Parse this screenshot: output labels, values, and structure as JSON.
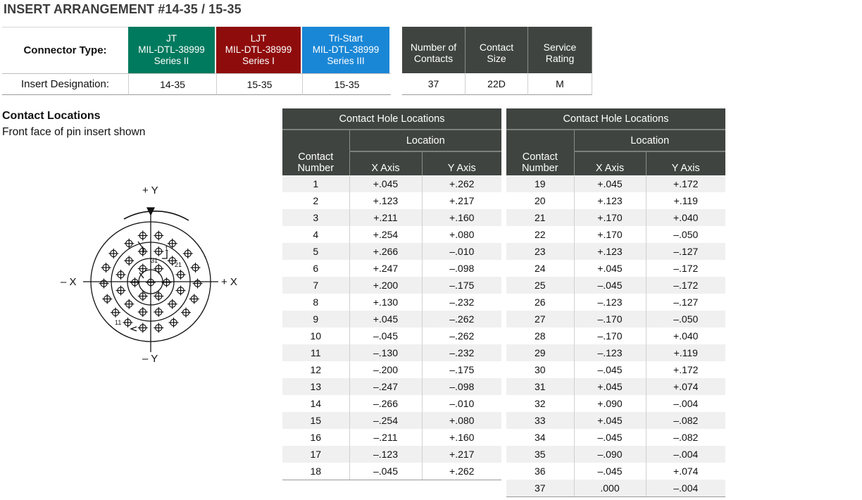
{
  "title": "INSERT ARRANGEMENT #14-35 / 15-35",
  "connector": {
    "type_label": "Connector Type:",
    "designation_label": "Insert Designation:",
    "series": [
      {
        "name": "JT",
        "spec": "MIL-DTL-38999",
        "series": "Series II",
        "color": "#007a5e",
        "designation": "14-35"
      },
      {
        "name": "LJT",
        "spec": "MIL-DTL-38999",
        "series": "Series I",
        "color": "#8f0c0c",
        "designation": "15-35"
      },
      {
        "name": "Tri-Start",
        "spec": "MIL-DTL-38999",
        "series": "Series III",
        "color": "#1a87d6",
        "designation": "15-35"
      }
    ]
  },
  "specs": {
    "headers": [
      [
        "Number of",
        "Contacts"
      ],
      [
        "Contact",
        "Size"
      ],
      [
        "Service",
        "Rating"
      ]
    ],
    "values": [
      "37",
      "22D",
      "M"
    ]
  },
  "contact_locations": {
    "title": "Contact Locations",
    "subtitle": "Front face of pin insert shown"
  },
  "diagram": {
    "plus_y": "+ Y",
    "minus_y": "– Y",
    "minus_x": "– X",
    "plus_x": "+ X",
    "label_1": "1",
    "label_21": "21",
    "label_31": "31",
    "label_11": "11"
  },
  "tables": {
    "title": "Contact Hole Locations",
    "location": "Location",
    "contact_number": [
      "Contact",
      "Number"
    ],
    "x_axis": "X Axis",
    "y_axis": "Y Axis",
    "left_rows": [
      [
        "1",
        "+.045",
        "+.262"
      ],
      [
        "2",
        "+.123",
        "+.217"
      ],
      [
        "3",
        "+.211",
        "+.160"
      ],
      [
        "4",
        "+.254",
        "+.080"
      ],
      [
        "5",
        "+.266",
        "–.010"
      ],
      [
        "6",
        "+.247",
        "–.098"
      ],
      [
        "7",
        "+.200",
        "–.175"
      ],
      [
        "8",
        "+.130",
        "–.232"
      ],
      [
        "9",
        "+.045",
        "–.262"
      ],
      [
        "10",
        "–.045",
        "–.262"
      ],
      [
        "11",
        "–.130",
        "–.232"
      ],
      [
        "12",
        "–.200",
        "–.175"
      ],
      [
        "13",
        "–.247",
        "–.098"
      ],
      [
        "14",
        "–.266",
        "–.010"
      ],
      [
        "15",
        "–.254",
        "+.080"
      ],
      [
        "16",
        "–.211",
        "+.160"
      ],
      [
        "17",
        "–.123",
        "+.217"
      ],
      [
        "18",
        "–.045",
        "+.262"
      ]
    ],
    "right_rows": [
      [
        "19",
        "+.045",
        "+.172"
      ],
      [
        "20",
        "+.123",
        "+.119"
      ],
      [
        "21",
        "+.170",
        "+.040"
      ],
      [
        "22",
        "+.170",
        "–.050"
      ],
      [
        "23",
        "+.123",
        "–.127"
      ],
      [
        "24",
        "+.045",
        "–.172"
      ],
      [
        "25",
        "–.045",
        "–.172"
      ],
      [
        "26",
        "–.123",
        "–.127"
      ],
      [
        "27",
        "–.170",
        "–.050"
      ],
      [
        "28",
        "–.170",
        "+.040"
      ],
      [
        "29",
        "–.123",
        "+.119"
      ],
      [
        "30",
        "–.045",
        "+.172"
      ],
      [
        "31",
        "+.045",
        "+.074"
      ],
      [
        "32",
        "+.090",
        "–.004"
      ],
      [
        "33",
        "+.045",
        "–.082"
      ],
      [
        "34",
        "–.045",
        "–.082"
      ],
      [
        "35",
        "–.090",
        "–.004"
      ],
      [
        "36",
        "–.045",
        "+.074"
      ],
      [
        "37",
        ".000",
        "–.004"
      ]
    ]
  }
}
